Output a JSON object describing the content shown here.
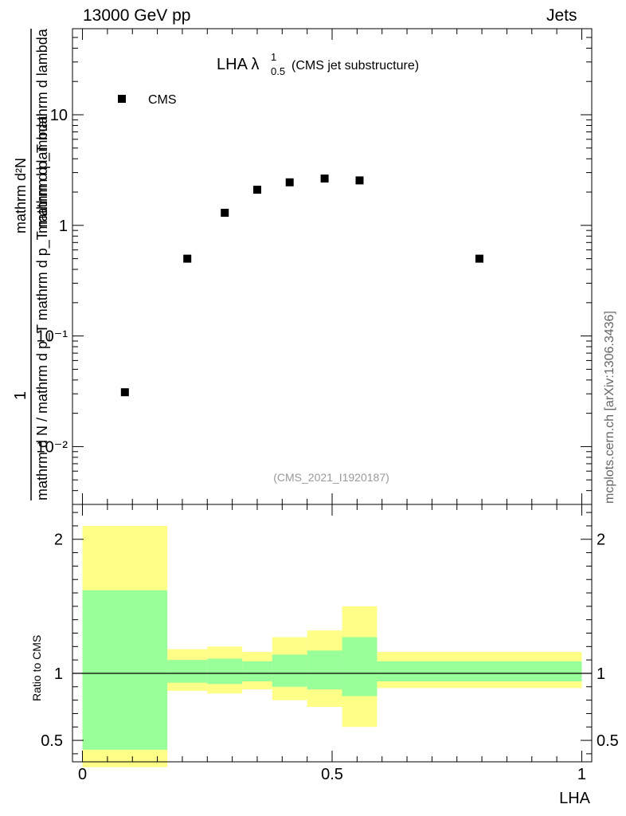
{
  "header": {
    "left": "13000 GeV pp",
    "right": "Jets"
  },
  "side_label": "mcplots.cern.ch [arXiv:1306.3436]",
  "main_panel": {
    "title_prefix": "LHA λ",
    "title_sup": "1",
    "title_sub": "0.5",
    "title_suffix": "(CMS jet substructure)",
    "legend_label": "CMS",
    "analysis_id": "(CMS_2021_I1920187)",
    "ylabel_numerator": "mathrm d²N",
    "ylabel_numerator_2": "mathrm d p_T mathrm d lambda",
    "ylabel_denominator": "mathrm d N / mathrm d p_T",
    "ylabel_one": "1",
    "ylabel_denominator_full": "mathrm d N / mathrm d p_T mathrm d p_T mathrm d lambda"
  },
  "ratio_panel": {
    "ylabel": "Ratio to CMS",
    "xlabel": "LHA"
  },
  "chart_data": [
    {
      "type": "scatter",
      "title": "LHA λ¹₀.₅ (CMS jet substructure)",
      "xlabel": "",
      "ylabel": "1/(dN/dpT) d²N/(dpT dλ)",
      "yscale": "log",
      "xlim": [
        -0.02,
        1.02
      ],
      "ylim": [
        0.003,
        60
      ],
      "yticks": [
        0.01,
        0.1,
        1,
        10
      ],
      "ytick_labels": [
        "10⁻²",
        "10⁻¹",
        "1",
        "10"
      ],
      "legend": "top-left",
      "series": [
        {
          "name": "CMS",
          "color": "#000000",
          "x": [
            0.085,
            0.21,
            0.285,
            0.35,
            0.415,
            0.485,
            0.555,
            0.795
          ],
          "y": [
            0.031,
            0.5,
            1.3,
            2.1,
            2.45,
            2.65,
            2.55,
            0.5
          ]
        }
      ]
    },
    {
      "type": "area",
      "title": "",
      "xlabel": "LHA",
      "ylabel": "Ratio to CMS",
      "xlim": [
        -0.02,
        1.02
      ],
      "ylim": [
        0.34,
        2.26
      ],
      "xticks": [
        0,
        0.5,
        1
      ],
      "xtick_labels": [
        "0",
        "0.5",
        "1"
      ],
      "yticks": [
        0.5,
        1,
        2
      ],
      "ytick_labels": [
        "0.5",
        "1",
        "2"
      ],
      "reference_line": 1,
      "bins": [
        [
          0.0,
          0.17
        ],
        [
          0.17,
          0.25
        ],
        [
          0.25,
          0.32
        ],
        [
          0.32,
          0.38
        ],
        [
          0.38,
          0.45
        ],
        [
          0.45,
          0.52
        ],
        [
          0.52,
          0.59
        ],
        [
          0.59,
          1.0
        ]
      ],
      "series": [
        {
          "name": "",
          "color": "#ffff88",
          "lower": [
            0.3,
            0.87,
            0.85,
            0.88,
            0.8,
            0.75,
            0.6,
            0.89
          ],
          "upper": [
            2.1,
            1.18,
            1.2,
            1.16,
            1.27,
            1.32,
            1.5,
            1.16
          ]
        },
        {
          "name": "",
          "color": "#99ff99",
          "lower": [
            0.43,
            0.93,
            0.92,
            0.94,
            0.9,
            0.88,
            0.83,
            0.94
          ],
          "upper": [
            1.62,
            1.1,
            1.11,
            1.09,
            1.14,
            1.17,
            1.27,
            1.09
          ]
        }
      ]
    }
  ]
}
